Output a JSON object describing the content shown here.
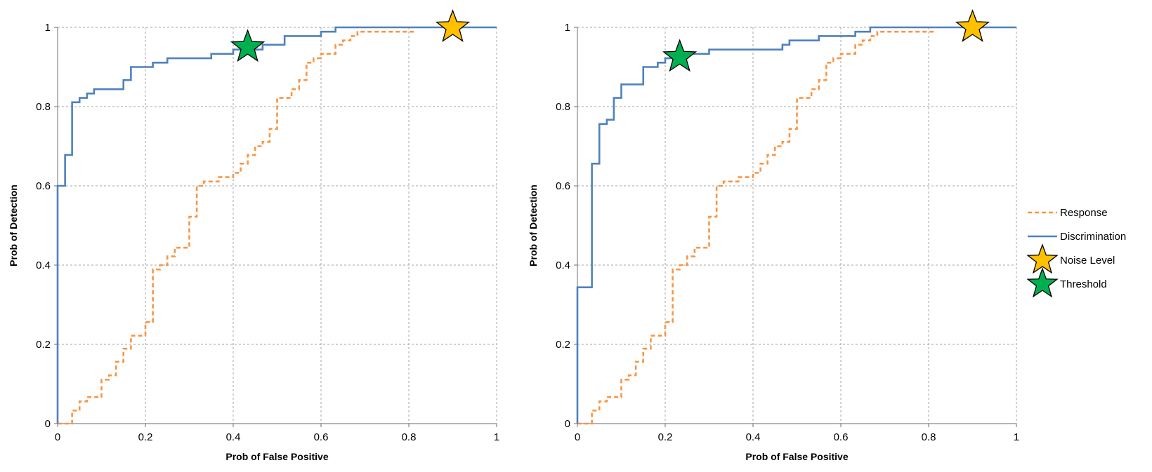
{
  "chart_data": [
    {
      "type": "line",
      "xlabel": "Prob of False  Positive",
      "ylabel": "Prob of Detection",
      "xlim": [
        0,
        1
      ],
      "ylim": [
        0,
        1
      ],
      "xticks": [
        "0",
        "0.2",
        "0.4",
        "0.6",
        "0.8",
        "1"
      ],
      "yticks": [
        "0",
        "0.2",
        "0.4",
        "0.6",
        "0.8",
        "1"
      ],
      "grid": true,
      "series": [
        {
          "name": "Response",
          "style": "dashed-step",
          "color": "#f79646",
          "x": [
            0.0,
            0.017,
            0.033,
            0.033,
            0.05,
            0.05,
            0.067,
            0.067,
            0.1,
            0.1,
            0.117,
            0.117,
            0.133,
            0.133,
            0.15,
            0.15,
            0.167,
            0.167,
            0.183,
            0.183,
            0.2,
            0.2,
            0.217,
            0.217,
            0.233,
            0.233,
            0.25,
            0.25,
            0.267,
            0.267,
            0.3,
            0.3,
            0.317,
            0.317,
            0.333,
            0.333,
            0.367,
            0.367,
            0.4,
            0.4,
            0.417,
            0.417,
            0.433,
            0.433,
            0.45,
            0.45,
            0.467,
            0.467,
            0.483,
            0.483,
            0.5,
            0.5,
            0.533,
            0.533,
            0.55,
            0.55,
            0.567,
            0.567,
            0.583,
            0.583,
            0.6,
            0.6,
            0.633,
            0.633,
            0.65,
            0.65,
            0.667,
            0.667,
            0.683,
            0.683,
            0.717,
            0.717,
            0.75,
            0.75,
            0.817
          ],
          "y": [
            0.0,
            0.0,
            0.0,
            0.033,
            0.033,
            0.056,
            0.056,
            0.067,
            0.067,
            0.111,
            0.111,
            0.122,
            0.122,
            0.156,
            0.156,
            0.189,
            0.189,
            0.222,
            0.222,
            0.222,
            0.222,
            0.256,
            0.256,
            0.389,
            0.389,
            0.4,
            0.4,
            0.422,
            0.422,
            0.444,
            0.444,
            0.522,
            0.522,
            0.6,
            0.6,
            0.611,
            0.611,
            0.622,
            0.622,
            0.633,
            0.633,
            0.656,
            0.656,
            0.678,
            0.678,
            0.7,
            0.7,
            0.711,
            0.711,
            0.744,
            0.744,
            0.822,
            0.822,
            0.844,
            0.844,
            0.867,
            0.867,
            0.911,
            0.911,
            0.922,
            0.922,
            0.933,
            0.933,
            0.956,
            0.956,
            0.967,
            0.967,
            0.978,
            0.978,
            0.989,
            0.989,
            0.989,
            0.989,
            0.989,
            0.989
          ]
        },
        {
          "name": "Discrimination",
          "style": "solid-step",
          "color": "#4f81bd",
          "x": [
            0.0,
            0.0,
            0.017,
            0.017,
            0.033,
            0.033,
            0.05,
            0.05,
            0.067,
            0.067,
            0.083,
            0.083,
            0.15,
            0.15,
            0.167,
            0.167,
            0.217,
            0.217,
            0.25,
            0.25,
            0.35,
            0.35,
            0.4,
            0.4,
            0.467,
            0.467,
            0.517,
            0.517,
            0.6,
            0.6,
            0.633,
            0.633,
            1.0
          ],
          "y": [
            0.0,
            0.6,
            0.6,
            0.678,
            0.678,
            0.811,
            0.811,
            0.822,
            0.822,
            0.833,
            0.833,
            0.844,
            0.844,
            0.867,
            0.867,
            0.9,
            0.9,
            0.911,
            0.911,
            0.922,
            0.922,
            0.933,
            0.933,
            0.944,
            0.944,
            0.956,
            0.956,
            0.978,
            0.978,
            0.989,
            0.989,
            1.0,
            1.0
          ]
        }
      ],
      "markers": [
        {
          "name": "Noise Level",
          "x": 0.9,
          "y": 1.0,
          "color": "#ffc000"
        },
        {
          "name": "Threshold",
          "x": 0.433,
          "y": 0.95,
          "color": "#00b050"
        }
      ]
    },
    {
      "type": "line",
      "xlabel": "Prob of False  Positive",
      "ylabel": "Prob of Detection",
      "xlim": [
        0,
        1
      ],
      "ylim": [
        0,
        1
      ],
      "xticks": [
        "0",
        "0.2",
        "0.4",
        "0.6",
        "0.8",
        "1"
      ],
      "yticks": [
        "0",
        "0.2",
        "0.4",
        "0.6",
        "0.8",
        "1"
      ],
      "grid": true,
      "series": [
        {
          "name": "Response",
          "style": "dashed-step",
          "color": "#f79646",
          "x": [
            0.0,
            0.017,
            0.033,
            0.033,
            0.05,
            0.05,
            0.067,
            0.067,
            0.1,
            0.1,
            0.117,
            0.117,
            0.133,
            0.133,
            0.15,
            0.15,
            0.167,
            0.167,
            0.183,
            0.183,
            0.2,
            0.2,
            0.217,
            0.217,
            0.233,
            0.233,
            0.25,
            0.25,
            0.267,
            0.267,
            0.3,
            0.3,
            0.317,
            0.317,
            0.333,
            0.333,
            0.367,
            0.367,
            0.4,
            0.4,
            0.417,
            0.417,
            0.433,
            0.433,
            0.45,
            0.45,
            0.467,
            0.467,
            0.483,
            0.483,
            0.5,
            0.5,
            0.533,
            0.533,
            0.55,
            0.55,
            0.567,
            0.567,
            0.583,
            0.583,
            0.6,
            0.6,
            0.633,
            0.633,
            0.65,
            0.65,
            0.667,
            0.667,
            0.683,
            0.683,
            0.717,
            0.717,
            0.75,
            0.75,
            0.817
          ],
          "y": [
            0.0,
            0.0,
            0.0,
            0.033,
            0.033,
            0.056,
            0.056,
            0.067,
            0.067,
            0.111,
            0.111,
            0.122,
            0.122,
            0.156,
            0.156,
            0.189,
            0.189,
            0.222,
            0.222,
            0.222,
            0.222,
            0.256,
            0.256,
            0.389,
            0.389,
            0.4,
            0.4,
            0.422,
            0.422,
            0.444,
            0.444,
            0.522,
            0.522,
            0.6,
            0.6,
            0.611,
            0.611,
            0.622,
            0.622,
            0.633,
            0.633,
            0.656,
            0.656,
            0.678,
            0.678,
            0.7,
            0.7,
            0.711,
            0.711,
            0.744,
            0.744,
            0.822,
            0.822,
            0.844,
            0.844,
            0.867,
            0.867,
            0.911,
            0.911,
            0.922,
            0.922,
            0.933,
            0.933,
            0.956,
            0.956,
            0.967,
            0.967,
            0.978,
            0.978,
            0.989,
            0.989,
            0.989,
            0.989,
            0.989,
            0.989
          ]
        },
        {
          "name": "Discrimination",
          "style": "solid-step",
          "color": "#4f81bd",
          "x": [
            0.0,
            0.0,
            0.033,
            0.033,
            0.05,
            0.05,
            0.067,
            0.067,
            0.083,
            0.083,
            0.1,
            0.1,
            0.15,
            0.15,
            0.183,
            0.183,
            0.2,
            0.2,
            0.25,
            0.25,
            0.3,
            0.3,
            0.467,
            0.467,
            0.483,
            0.483,
            0.55,
            0.55,
            0.633,
            0.633,
            0.667,
            0.667,
            1.0
          ],
          "y": [
            0.0,
            0.344,
            0.344,
            0.656,
            0.656,
            0.756,
            0.756,
            0.767,
            0.767,
            0.822,
            0.822,
            0.856,
            0.856,
            0.9,
            0.9,
            0.911,
            0.911,
            0.922,
            0.922,
            0.933,
            0.933,
            0.944,
            0.944,
            0.956,
            0.956,
            0.967,
            0.967,
            0.978,
            0.978,
            0.989,
            0.989,
            1.0,
            1.0
          ]
        }
      ],
      "markers": [
        {
          "name": "Noise Level",
          "x": 0.9,
          "y": 1.0,
          "color": "#ffc000"
        },
        {
          "name": "Threshold",
          "x": 0.233,
          "y": 0.925,
          "color": "#00b050"
        }
      ]
    }
  ],
  "legend": {
    "placement": "right",
    "items": [
      {
        "label": "Response",
        "kind": "dashed-line",
        "color": "#f79646"
      },
      {
        "label": "Discrimination",
        "kind": "solid-line",
        "color": "#4f81bd"
      },
      {
        "label": "Noise Level",
        "kind": "star",
        "color": "#ffc000"
      },
      {
        "label": "Threshold",
        "kind": "star",
        "color": "#00b050"
      }
    ]
  }
}
